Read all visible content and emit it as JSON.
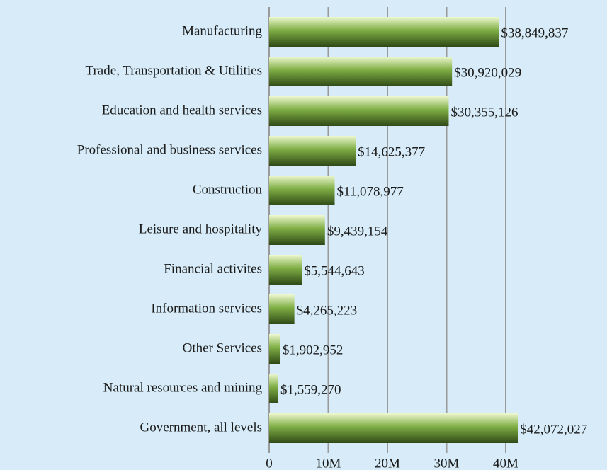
{
  "chart_data": {
    "type": "bar",
    "orientation": "horizontal",
    "categories": [
      "Manufacturing",
      "Trade, Transportation & Utilities",
      "Education and health services",
      "Professional and business services",
      "Construction",
      "Leisure and hospitality",
      "Financial activites",
      "Information services",
      "Other Services",
      "Natural resources and mining",
      "Government, all levels"
    ],
    "values": [
      38849837,
      30920029,
      30355126,
      14625377,
      11078977,
      9439154,
      5544643,
      4265223,
      1902952,
      1559270,
      42072027
    ],
    "value_labels": [
      "$38,849,837",
      "$30,920,029",
      "$30,355,126",
      "$14,625,377",
      "$11,078,977",
      "$9,439,154",
      "$5,544,643",
      "$4,265,223",
      "$1,902,952",
      "$1,559,270",
      "$42,072,027"
    ],
    "color": "#7fae44",
    "xlim": [
      0,
      45000000
    ],
    "xticks": [
      0,
      {
        "value": 10000000,
        "label": "10M"
      },
      {
        "value": 20000000,
        "label": "20M"
      },
      {
        "value": 30000000,
        "label": "30M"
      },
      {
        "value": 40000000,
        "label": "40M"
      }
    ],
    "grid": true
  }
}
